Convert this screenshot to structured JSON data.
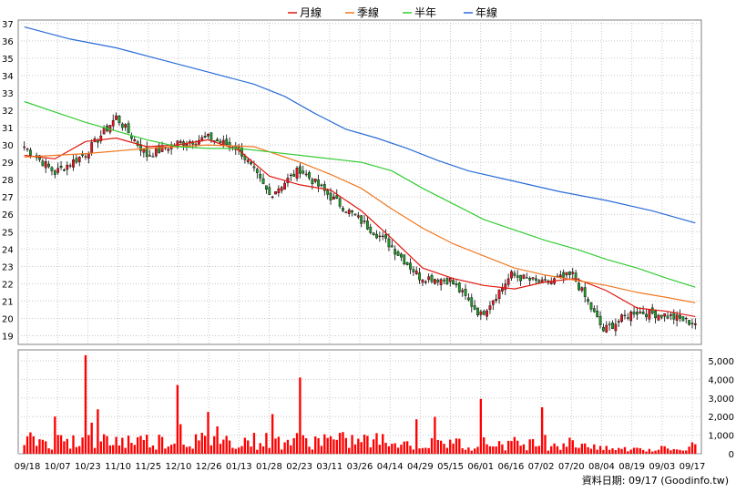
{
  "chart_data": [
    {
      "type": "candlestick",
      "legend": [
        {
          "name": "月線",
          "color": "#e0180f"
        },
        {
          "name": "季線",
          "color": "#f07820"
        },
        {
          "name": "半年",
          "color": "#33cc33"
        },
        {
          "name": "年線",
          "color": "#2b6cd6"
        }
      ],
      "legend_placement": "top-center",
      "ylim": [
        18.5,
        37.2
      ],
      "y_ticks": [
        "19",
        "20",
        "21",
        "22",
        "23",
        "24",
        "25",
        "26",
        "27",
        "28",
        "29",
        "30",
        "31",
        "32",
        "33",
        "34",
        "35",
        "36",
        "37"
      ],
      "grid": true,
      "candle_colors": {
        "up": "#e8141e",
        "down": "#1e9a28",
        "neutral": "#000000"
      },
      "key_closes": [
        {
          "date": "09/18",
          "value": 29.9
        },
        {
          "date": "10/07",
          "value": 28.4
        },
        {
          "date": "10/23",
          "value": 29.5
        },
        {
          "date": "11/10",
          "value": 31.6
        },
        {
          "date": "11/25",
          "value": 29.4
        },
        {
          "date": "12/10",
          "value": 30.1
        },
        {
          "date": "12/26",
          "value": 30.4
        },
        {
          "date": "01/13",
          "value": 29.8
        },
        {
          "date": "01/28",
          "value": 27.1
        },
        {
          "date": "02/23",
          "value": 28.6
        },
        {
          "date": "03/11",
          "value": 27.0
        },
        {
          "date": "03/26",
          "value": 25.6
        },
        {
          "date": "04/14",
          "value": 24.3
        },
        {
          "date": "04/29",
          "value": 22.4
        },
        {
          "date": "05/15",
          "value": 22.2
        },
        {
          "date": "06/01",
          "value": 20.2
        },
        {
          "date": "06/16",
          "value": 22.5
        },
        {
          "date": "07/02",
          "value": 22.0
        },
        {
          "date": "07/20",
          "value": 22.5
        },
        {
          "date": "08/04",
          "value": 19.3
        },
        {
          "date": "08/19",
          "value": 20.4
        },
        {
          "date": "09/03",
          "value": 20.2
        },
        {
          "date": "09/17",
          "value": 19.7
        }
      ],
      "moving_averages": [
        {
          "name": "月線",
          "color": "#e0180f",
          "values": [
            [
              0,
              29.4
            ],
            [
              10,
              29.2
            ],
            [
              20,
              30.2
            ],
            [
              30,
              30.4
            ],
            [
              40,
              29.9
            ],
            [
              50,
              30.0
            ],
            [
              60,
              30.3
            ],
            [
              70,
              29.7
            ],
            [
              80,
              28.2
            ],
            [
              90,
              27.7
            ],
            [
              100,
              27.4
            ],
            [
              110,
              26.2
            ],
            [
              120,
              24.6
            ],
            [
              130,
              22.9
            ],
            [
              140,
              22.3
            ],
            [
              150,
              21.9
            ],
            [
              160,
              21.7
            ],
            [
              170,
              22.1
            ],
            [
              180,
              22.3
            ],
            [
              190,
              21.6
            ],
            [
              200,
              20.6
            ],
            [
              210,
              20.4
            ],
            [
              219,
              20.1
            ]
          ]
        },
        {
          "name": "季線",
          "color": "#f07820",
          "values": [
            [
              0,
              29.3
            ],
            [
              20,
              29.5
            ],
            [
              40,
              29.8
            ],
            [
              60,
              30.0
            ],
            [
              75,
              29.9
            ],
            [
              90,
              29.0
            ],
            [
              100,
              28.3
            ],
            [
              110,
              27.5
            ],
            [
              120,
              26.3
            ],
            [
              130,
              25.2
            ],
            [
              140,
              24.3
            ],
            [
              150,
              23.6
            ],
            [
              160,
              22.9
            ],
            [
              170,
              22.5
            ],
            [
              180,
              22.2
            ],
            [
              190,
              21.9
            ],
            [
              200,
              21.5
            ],
            [
              210,
              21.2
            ],
            [
              219,
              20.9
            ]
          ]
        },
        {
          "name": "半年",
          "color": "#33cc33",
          "values": [
            [
              0,
              32.5
            ],
            [
              10,
              31.9
            ],
            [
              20,
              31.3
            ],
            [
              30,
              30.8
            ],
            [
              40,
              30.3
            ],
            [
              50,
              29.9
            ],
            [
              60,
              29.8
            ],
            [
              70,
              29.8
            ],
            [
              80,
              29.6
            ],
            [
              95,
              29.3
            ],
            [
              110,
              29.0
            ],
            [
              120,
              28.5
            ],
            [
              130,
              27.5
            ],
            [
              140,
              26.6
            ],
            [
              150,
              25.7
            ],
            [
              160,
              25.1
            ],
            [
              170,
              24.5
            ],
            [
              180,
              24.0
            ],
            [
              190,
              23.4
            ],
            [
              200,
              22.9
            ],
            [
              210,
              22.3
            ],
            [
              219,
              21.8
            ]
          ]
        },
        {
          "name": "年線",
          "color": "#2b6cd6",
          "values": [
            [
              0,
              36.8
            ],
            [
              15,
              36.1
            ],
            [
              30,
              35.6
            ],
            [
              45,
              34.9
            ],
            [
              60,
              34.2
            ],
            [
              75,
              33.5
            ],
            [
              85,
              32.8
            ],
            [
              95,
              31.8
            ],
            [
              105,
              30.9
            ],
            [
              115,
              30.4
            ],
            [
              125,
              29.8
            ],
            [
              135,
              29.1
            ],
            [
              145,
              28.5
            ],
            [
              160,
              27.9
            ],
            [
              175,
              27.3
            ],
            [
              190,
              26.8
            ],
            [
              205,
              26.2
            ],
            [
              219,
              25.5
            ]
          ]
        }
      ]
    },
    {
      "type": "bar",
      "ylim": [
        0,
        5000
      ],
      "y_ticks": [
        "0",
        "1,000",
        "2,000",
        "3,000",
        "4,000",
        "5,000"
      ],
      "bar_color": "#ff0000",
      "peaks": [
        {
          "date": "10/23",
          "value": 5300
        },
        {
          "date": "12/10",
          "value": 3700
        },
        {
          "date": "02/23",
          "value": 4100
        },
        {
          "date": "06/01",
          "value": 2950
        },
        {
          "date": "07/02",
          "value": 2500
        },
        {
          "date": "10/07",
          "value": 2000
        }
      ]
    }
  ],
  "x_axis": {
    "labels": [
      "09/18",
      "10/07",
      "10/23",
      "11/10",
      "11/25",
      "12/10",
      "12/26",
      "01/13",
      "01/28",
      "02/23",
      "03/11",
      "03/26",
      "04/14",
      "04/29",
      "05/15",
      "06/01",
      "06/16",
      "07/02",
      "07/20",
      "08/04",
      "08/19",
      "09/03",
      "09/17"
    ]
  },
  "footer": {
    "text": "資料日期: 09/17  (Goodinfo.tw)"
  }
}
